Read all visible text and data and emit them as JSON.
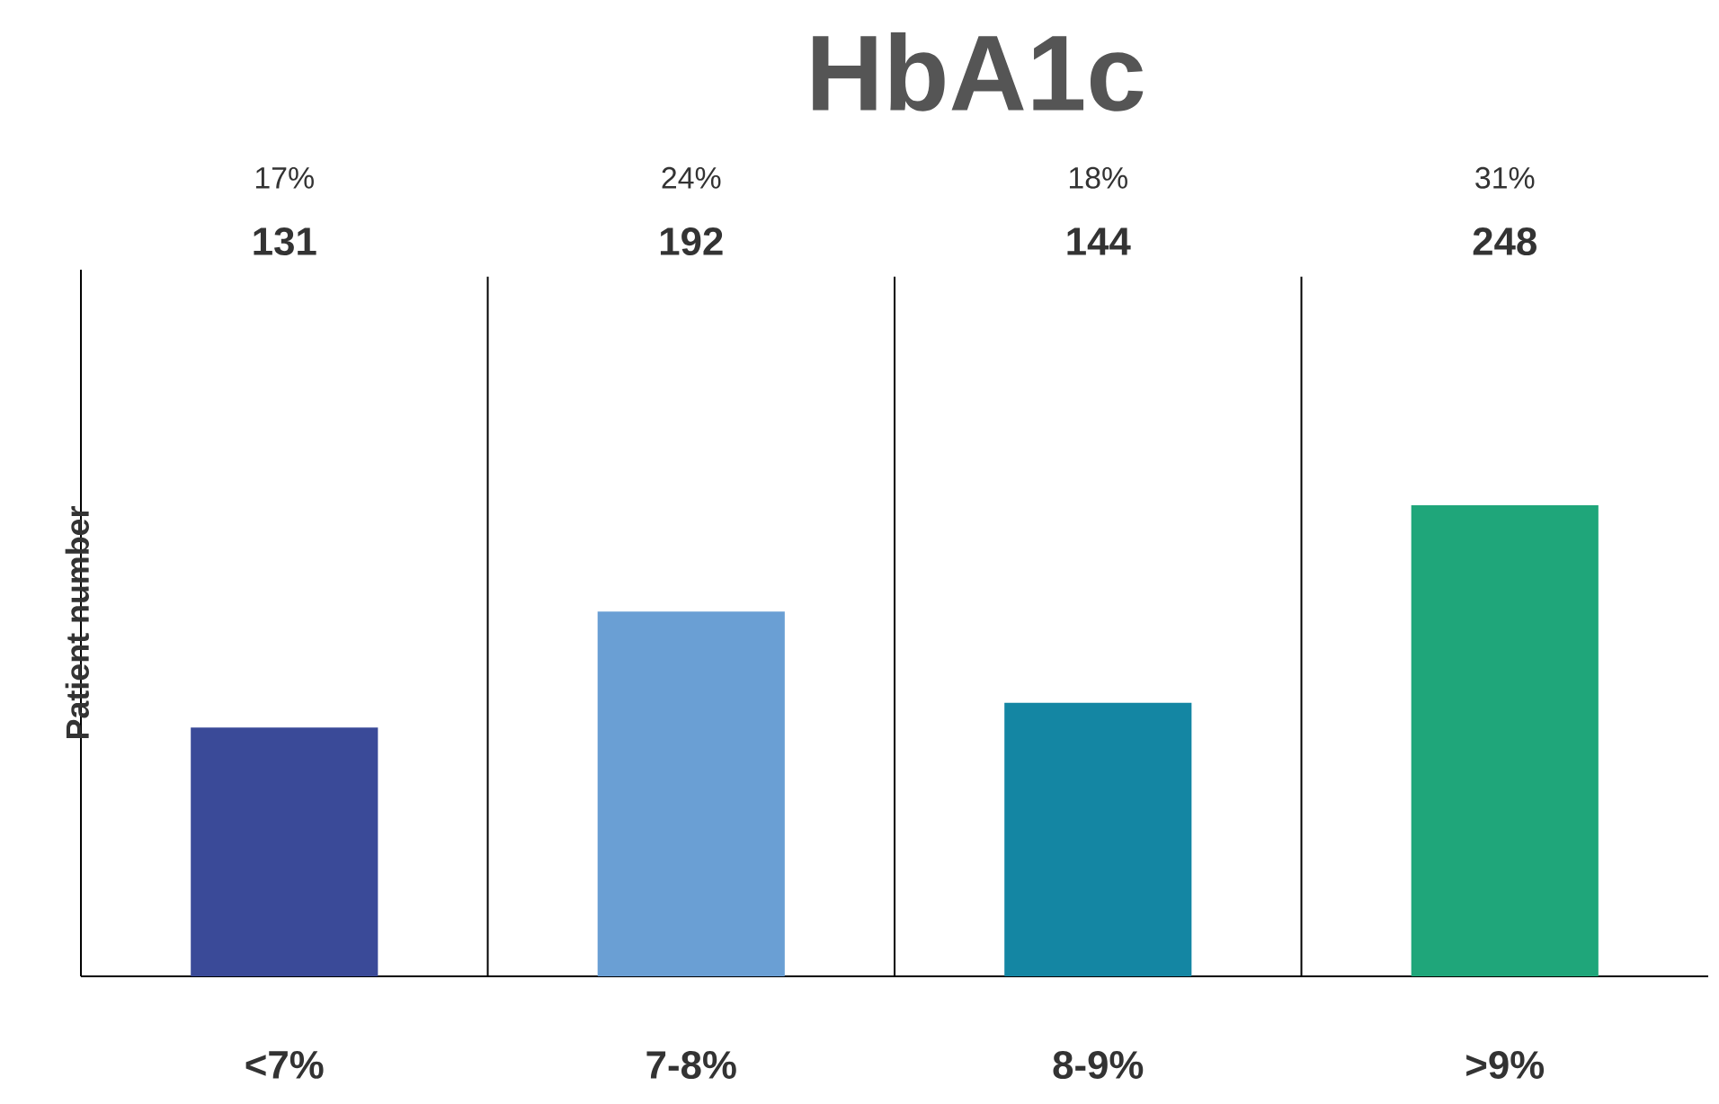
{
  "chart_data": {
    "type": "bar",
    "title": "HbA1c",
    "ylabel": "Patient number",
    "categories": [
      "<7%",
      "7-8%",
      "8-9%",
      ">9%"
    ],
    "values": [
      131,
      192,
      144,
      248
    ],
    "colors": [
      "#3a4a98",
      "#6a9fd4",
      "#1486a3",
      "#1fa67a"
    ],
    "data_labels": true,
    "annotations": [
      "17%",
      "24%",
      "18%",
      "31%"
    ],
    "grid": false
  }
}
